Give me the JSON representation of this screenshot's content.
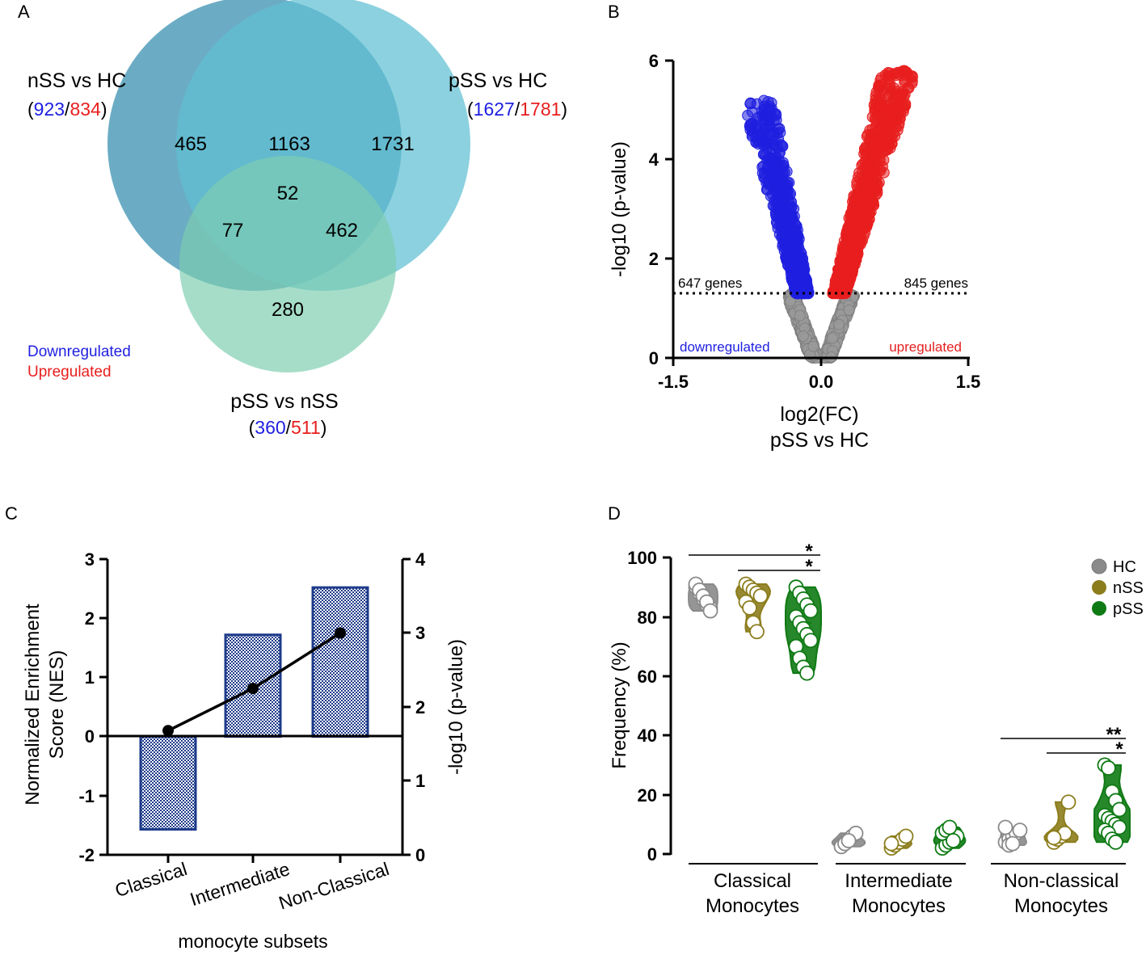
{
  "panel_labels": {
    "a": "A",
    "b": "B",
    "c": "C",
    "d": "D"
  },
  "colors": {
    "down": "#1f1fe0",
    "up": "#e81e1e",
    "grey": "#9a9a9a",
    "venn_a": "#3a90b0",
    "venn_b": "#5fbfd2",
    "venn_c": "#7ccdb0",
    "hc": "#8a8a8a",
    "nss": "#8c7d1c",
    "pss": "#0f7a14",
    "bar": "#1e3b8a"
  },
  "chart_data": [
    {
      "type": "venn",
      "sets": [
        {
          "name": "nSS vs HC",
          "down": "923",
          "up": "834"
        },
        {
          "name": "pSS vs HC",
          "down": "1627",
          "up": "1781"
        },
        {
          "name": "pSS vs nSS",
          "down": "360",
          "up": "511"
        }
      ],
      "regions": {
        "only_nss_hc": "465",
        "only_pss_hc": "1731",
        "only_pss_nss": "280",
        "nss_hc_and_pss_hc": "1163",
        "nss_hc_and_pss_nss": "77",
        "pss_hc_and_pss_nss": "462",
        "all_three": "52"
      },
      "legend": {
        "down": "Downregulated",
        "up": "Upregulated"
      }
    },
    {
      "type": "scatter",
      "title": "",
      "xlabel": "log2(FC)",
      "xlabel2": "pSS vs HC",
      "ylabel": "-log10 (p-value)",
      "xlim": [
        -1.5,
        1.5
      ],
      "ylim": [
        0,
        6
      ],
      "xticks": [
        "-1.5",
        "0.0",
        "1.5"
      ],
      "yticks": [
        "0",
        "2",
        "4",
        "6"
      ],
      "threshold": 1.3,
      "down_count": "647 genes",
      "up_count": "845 genes",
      "down_label": "downregulated",
      "up_label": "upregulated",
      "n_points": {
        "down": 647,
        "up": 845,
        "ns": 700
      }
    },
    {
      "type": "bar",
      "xlabel": "monocyte subsets",
      "ylabel": "Normalized Enrichment Score (NES)",
      "ylabel_line1": "Normalized Enrichment",
      "ylabel_line2": "Score (NES)",
      "y2label": "-log10 (p-value)",
      "categories": [
        "Classical",
        "Intermediate",
        "Non-Classical"
      ],
      "values": [
        -1.57,
        1.72,
        2.52
      ],
      "line_values": [
        1.68,
        2.25,
        3.0
      ],
      "ylim": [
        -2,
        3
      ],
      "y2lim": [
        0,
        4
      ],
      "yticks": [
        "-2",
        "-1",
        "0",
        "1",
        "2",
        "3"
      ],
      "y2ticks": [
        "0",
        "1",
        "2",
        "3",
        "4"
      ]
    },
    {
      "type": "violin",
      "ylabel": "Frequency (%)",
      "ylim": [
        0,
        100
      ],
      "yticks": [
        "0",
        "20",
        "40",
        "60",
        "80",
        "100"
      ],
      "groups": [
        {
          "line1": "Classical",
          "line2": "Monocytes"
        },
        {
          "line1": "Intermediate",
          "line2": "Monocytes"
        },
        {
          "line1": "Non-classical",
          "line2": "Monocytes"
        }
      ],
      "legend": [
        "HC",
        "nSS",
        "pSS"
      ],
      "series": [
        {
          "name": "HC",
          "values": [
            [
              90,
              88,
              86,
              84,
              83,
              91,
              89,
              87,
              85,
              82
            ],
            [
              3,
              4,
              5,
              6,
              7,
              2.5,
              3.5,
              4.5
            ],
            [
              4,
              5,
              6,
              7,
              8,
              9,
              3,
              3.5
            ]
          ]
        },
        {
          "name": "nSS",
          "values": [
            [
              91,
              90,
              89,
              88,
              87,
              85,
              83,
              78,
              75
            ],
            [
              2,
              3,
              4,
              5,
              6,
              3.5
            ],
            [
              4,
              5,
              6,
              7,
              17.5,
              5.5
            ]
          ]
        },
        {
          "name": "pSS",
          "values": [
            [
              90,
              88,
              86,
              84,
              82,
              80,
              78,
              76,
              74,
              72,
              70,
              66,
              63,
              61
            ],
            [
              2,
              3,
              4,
              5,
              6,
              7,
              8,
              9,
              4.5
            ],
            [
              30,
              29,
              21,
              18,
              15,
              13,
              12,
              11,
              10,
              9,
              8,
              7,
              5,
              4
            ]
          ]
        }
      ],
      "significance": [
        {
          "group": 0,
          "from": "HC",
          "to": "pSS",
          "mark": "*"
        },
        {
          "group": 0,
          "from": "nSS",
          "to": "pSS",
          "mark": "*"
        },
        {
          "group": 2,
          "from": "HC",
          "to": "pSS",
          "mark": "**"
        },
        {
          "group": 2,
          "from": "nSS",
          "to": "pSS",
          "mark": "*"
        }
      ]
    }
  ]
}
